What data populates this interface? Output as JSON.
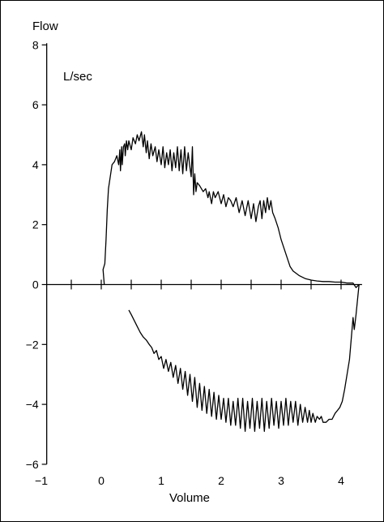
{
  "chart_data": {
    "type": "line",
    "title": "",
    "ylabel": "Flow",
    "xlabel": "Volume",
    "unit_label": "L/sec",
    "xlim": [
      -1,
      4.35
    ],
    "ylim": [
      -6,
      8
    ],
    "x_ticks": [
      -1,
      0,
      1,
      2,
      3,
      4
    ],
    "x_tick_labels": [
      "−1",
      "0",
      "1",
      "2",
      "3",
      "4"
    ],
    "y_ticks": [
      -6,
      -4,
      -2,
      0,
      2,
      4,
      6,
      8
    ],
    "y_tick_labels": [
      "−6",
      "−4",
      "−2",
      "0",
      "2",
      "4",
      "6",
      "8"
    ],
    "minor_x_ticks": [
      -0.5,
      0.5,
      1.5,
      2.5,
      3.5
    ],
    "grid": false,
    "series": [
      {
        "key": "expiratory",
        "x": [
          0.05,
          0.03,
          0.06,
          0.08,
          0.1,
          0.12,
          0.15,
          0.18,
          0.22,
          0.26,
          0.29,
          0.31,
          0.32,
          0.34,
          0.35,
          0.37,
          0.39,
          0.4,
          0.42,
          0.44,
          0.46,
          0.5,
          0.53,
          0.57,
          0.6,
          0.63,
          0.67,
          0.7,
          0.72,
          0.75,
          0.77,
          0.8,
          0.83,
          0.86,
          0.9,
          0.93,
          0.96,
          1.0,
          1.03,
          1.06,
          1.09,
          1.12,
          1.15,
          1.18,
          1.21,
          1.24,
          1.27,
          1.3,
          1.33,
          1.36,
          1.39,
          1.42,
          1.45,
          1.48,
          1.5,
          1.52,
          1.54,
          1.56,
          1.58,
          1.6,
          1.64,
          1.7,
          1.74,
          1.78,
          1.8,
          1.84,
          1.87,
          1.9,
          1.95,
          2.0,
          2.04,
          2.08,
          2.12,
          2.16,
          2.2,
          2.25,
          2.3,
          2.35,
          2.4,
          2.45,
          2.5,
          2.54,
          2.58,
          2.62,
          2.65,
          2.68,
          2.71,
          2.74,
          2.77,
          2.8,
          2.83,
          2.86,
          2.9,
          2.95,
          3.0,
          3.05,
          3.1,
          3.15,
          3.2,
          3.3,
          3.4,
          3.5,
          3.6,
          3.7,
          3.8,
          3.9,
          4.0,
          4.1,
          4.2,
          4.25,
          4.3
        ],
        "y": [
          0.0,
          0.5,
          0.7,
          1.5,
          2.5,
          3.2,
          3.6,
          4.0,
          4.1,
          4.3,
          4.0,
          4.5,
          3.8,
          4.6,
          4.0,
          4.6,
          4.7,
          4.3,
          4.8,
          4.5,
          4.8,
          4.5,
          4.9,
          4.7,
          5.0,
          4.8,
          5.1,
          4.6,
          5.0,
          4.4,
          4.8,
          4.2,
          4.7,
          4.3,
          4.6,
          4.1,
          4.5,
          4.0,
          4.6,
          3.9,
          4.4,
          4.0,
          4.5,
          3.8,
          4.4,
          3.9,
          4.6,
          3.8,
          4.5,
          3.7,
          4.6,
          3.8,
          4.4,
          3.9,
          3.6,
          4.6,
          3.0,
          3.7,
          3.1,
          3.4,
          3.3,
          3.1,
          3.2,
          2.9,
          3.1,
          2.7,
          3.1,
          2.9,
          3.1,
          2.7,
          3.0,
          2.6,
          2.9,
          2.8,
          2.6,
          2.9,
          2.4,
          2.8,
          2.3,
          2.8,
          2.2,
          2.7,
          2.1,
          2.6,
          2.8,
          2.2,
          2.8,
          2.4,
          2.9,
          2.5,
          2.8,
          2.4,
          2.2,
          1.9,
          1.5,
          1.2,
          0.9,
          0.6,
          0.45,
          0.3,
          0.2,
          0.15,
          0.12,
          0.1,
          0.1,
          0.08,
          0.08,
          0.05,
          0.05,
          -0.1,
          0.0
        ]
      },
      {
        "key": "inspiratory",
        "x": [
          4.3,
          4.28,
          4.25,
          4.22,
          4.2,
          4.17,
          4.14,
          4.1,
          4.06,
          4.02,
          3.98,
          3.94,
          3.9,
          3.85,
          3.8,
          3.75,
          3.7,
          3.67,
          3.64,
          3.6,
          3.57,
          3.53,
          3.5,
          3.47,
          3.44,
          3.4,
          3.36,
          3.32,
          3.28,
          3.24,
          3.2,
          3.16,
          3.12,
          3.08,
          3.04,
          3.0,
          2.96,
          2.92,
          2.88,
          2.84,
          2.8,
          2.76,
          2.72,
          2.68,
          2.64,
          2.6,
          2.56,
          2.52,
          2.48,
          2.44,
          2.4,
          2.36,
          2.32,
          2.28,
          2.24,
          2.2,
          2.16,
          2.12,
          2.08,
          2.04,
          2.0,
          1.96,
          1.92,
          1.88,
          1.84,
          1.8,
          1.76,
          1.72,
          1.68,
          1.64,
          1.6,
          1.56,
          1.52,
          1.48,
          1.44,
          1.4,
          1.36,
          1.32,
          1.28,
          1.24,
          1.2,
          1.16,
          1.12,
          1.08,
          1.04,
          1.0,
          0.96,
          0.92,
          0.88,
          0.84,
          0.8,
          0.75,
          0.7,
          0.65,
          0.6,
          0.55,
          0.5,
          0.46
        ],
        "y": [
          0.0,
          -0.4,
          -1.0,
          -1.5,
          -1.1,
          -1.8,
          -2.5,
          -3.0,
          -3.5,
          -3.9,
          -4.1,
          -4.2,
          -4.3,
          -4.5,
          -4.5,
          -4.6,
          -4.6,
          -4.4,
          -4.5,
          -4.4,
          -4.6,
          -4.3,
          -4.6,
          -4.2,
          -4.6,
          -4.1,
          -4.6,
          -4.0,
          -4.7,
          -3.9,
          -4.6,
          -3.9,
          -4.7,
          -3.8,
          -4.7,
          -3.9,
          -4.8,
          -3.9,
          -4.7,
          -3.8,
          -4.8,
          -3.9,
          -4.9,
          -3.8,
          -4.8,
          -3.9,
          -4.9,
          -3.8,
          -4.8,
          -3.9,
          -4.9,
          -3.8,
          -4.8,
          -3.8,
          -4.7,
          -3.9,
          -4.7,
          -3.8,
          -4.6,
          -3.8,
          -4.5,
          -3.7,
          -4.5,
          -3.6,
          -4.4,
          -3.5,
          -4.3,
          -3.4,
          -4.2,
          -3.3,
          -4.1,
          -3.1,
          -3.9,
          -3.0,
          -3.7,
          -2.9,
          -3.5,
          -2.8,
          -3.3,
          -2.7,
          -3.1,
          -2.6,
          -2.9,
          -2.5,
          -2.8,
          -2.4,
          -2.5,
          -2.2,
          -2.3,
          -2.1,
          -2.0,
          -1.85,
          -1.75,
          -1.6,
          -1.4,
          -1.2,
          -1.0,
          -0.85
        ]
      }
    ]
  },
  "colors": {
    "line": "#000000",
    "axis": "#000000",
    "background": "#ffffff",
    "frame": "#000000"
  }
}
